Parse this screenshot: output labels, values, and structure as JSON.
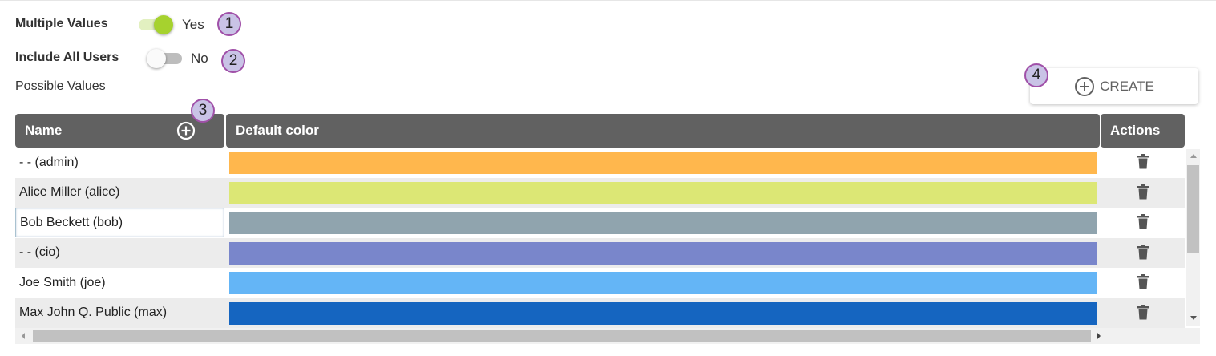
{
  "settings": {
    "multiple_values": {
      "label": "Multiple Values",
      "on": true,
      "state": "Yes",
      "badge": "1"
    },
    "include_all_users": {
      "label": "Include All Users",
      "on": false,
      "state": "No",
      "badge": "2"
    },
    "possible_values_label": "Possible Values"
  },
  "create_button": {
    "label": "CREATE",
    "badge": "4",
    "icon": "plus-circle-icon"
  },
  "table": {
    "name_header": "Name",
    "name_badge": "3",
    "color_header": "Default color",
    "actions_header": "Actions",
    "rows": [
      {
        "name": "- - (admin)",
        "color": "#FFB74D"
      },
      {
        "name": "Alice Miller (alice)",
        "color": "#DCE775"
      },
      {
        "name": "Bob Beckett (bob)",
        "color": "#90A4AE"
      },
      {
        "name": "- - (cio)",
        "color": "#7986CB"
      },
      {
        "name": "Joe Smith (joe)",
        "color": "#64B5F6"
      },
      {
        "name": "Max John Q. Public (max)",
        "color": "#1565C0"
      }
    ]
  }
}
